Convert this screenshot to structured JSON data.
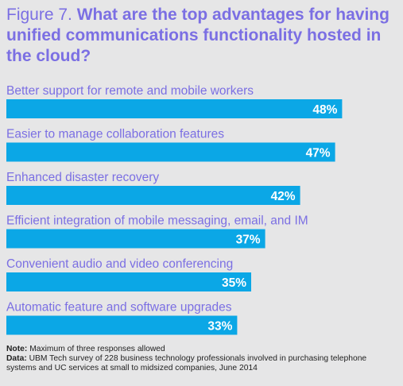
{
  "header": {
    "figure_label": "Figure 7.",
    "question": "What are the top advantages for having unified communications functionality hosted in the cloud?"
  },
  "chart_data": {
    "type": "bar",
    "orientation": "horizontal",
    "categories": [
      "Better support for remote and mobile workers",
      "Easier to manage collaboration features",
      "Enhanced disaster recovery",
      "Efficient integration of mobile messaging, email, and IM",
      "Convenient audio and video conferencing",
      "Automatic feature and software upgrades"
    ],
    "values": [
      48,
      47,
      42,
      37,
      35,
      33
    ],
    "value_labels": [
      "48%",
      "47%",
      "42%",
      "37%",
      "35%",
      "33%"
    ],
    "bar_color": "#0ba7e6",
    "label_color": "#7b6fe3",
    "grid": false,
    "legend": "none"
  },
  "footer": {
    "note_label": "Note:",
    "note_text": "Maximum of three responses allowed",
    "data_label": "Data:",
    "data_text": "UBM Tech survey of 228 business technology professionals involved in purchasing telephone systems and UC services at small to midsized companies, June 2014"
  }
}
